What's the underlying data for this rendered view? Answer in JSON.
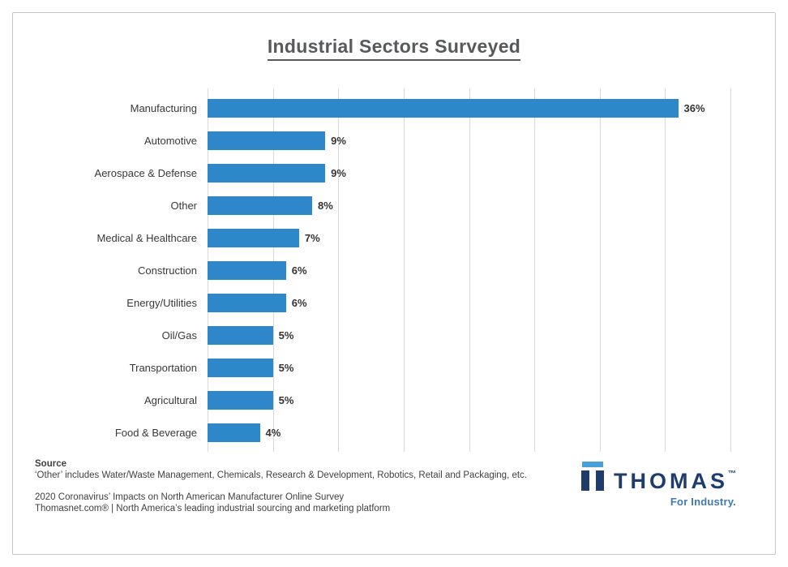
{
  "title": "Industrial Sectors Surveyed",
  "chart_data": {
    "type": "bar",
    "orientation": "horizontal",
    "title": "Industrial Sectors Surveyed",
    "categories": [
      "Manufacturing",
      "Automotive",
      "Aerospace & Defense",
      "Other",
      "Medical & Healthcare",
      "Construction",
      "Energy/Utilities",
      "Oil/Gas",
      "Transportation",
      "Agricultural",
      "Food & Beverage"
    ],
    "values": [
      36,
      9,
      9,
      8,
      7,
      6,
      6,
      5,
      5,
      5,
      4
    ],
    "value_suffix": "%",
    "xlabel": "",
    "ylabel": "",
    "xlim": [
      0,
      40
    ],
    "gridline_interval": 5,
    "grid": true,
    "legend": "none",
    "bar_color": "#2d87c9",
    "gridline_color": "#d9d9d9"
  },
  "footer": {
    "source_label": "Source",
    "source_note": "‘Other’ includes Water/Waste Management, Chemicals, Research & Development, Robotics, Retail and Packaging, etc.",
    "survey_line": "2020 Coronavirus’ Impacts on North American Manufacturer Online Survey",
    "platform_line": "Thomasnet.com®  | North America’s leading industrial sourcing and marketing platform"
  },
  "logo": {
    "brand": "THOMAS",
    "trademark": "™",
    "tagline": "For Industry.",
    "navy_color": "#1e3d6d",
    "light_blue_color": "#4aa0d8",
    "tagline_color": "#3f7ab5"
  }
}
